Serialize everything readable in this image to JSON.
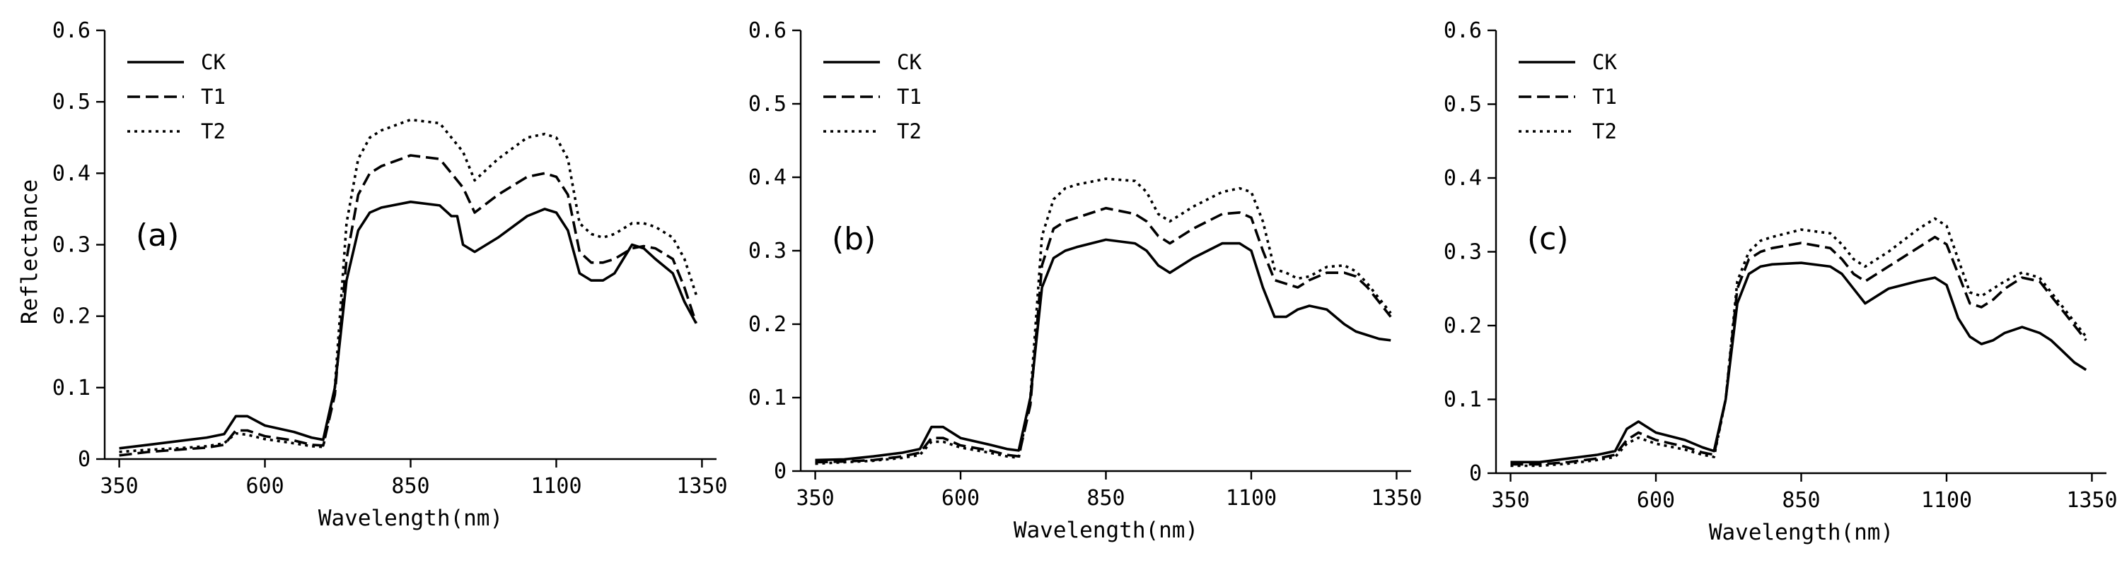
{
  "chart_data": [
    {
      "type": "line",
      "panel_label": "(a)",
      "xlabel": "Wavelength(nm)",
      "ylabel": "Reflectance",
      "xlim": [
        325,
        1375
      ],
      "ylim": [
        0,
        0.6
      ],
      "xticks": [
        350,
        600,
        850,
        1100,
        1350
      ],
      "yticks": [
        0,
        0.1,
        0.2,
        0.3,
        0.4,
        0.5,
        0.6
      ],
      "ytick_labels": [
        "0",
        "0.1",
        "0.2",
        "0.3",
        "0.4",
        "0.5",
        "0.6"
      ],
      "legend_position": "top-left",
      "series": [
        {
          "name": "CK",
          "style": "solid",
          "x": [
            350,
            400,
            450,
            500,
            530,
            550,
            570,
            600,
            650,
            680,
            700,
            720,
            740,
            760,
            780,
            800,
            850,
            900,
            920,
            930,
            940,
            960,
            1000,
            1050,
            1080,
            1100,
            1120,
            1140,
            1160,
            1180,
            1200,
            1230,
            1250,
            1270,
            1300,
            1320,
            1340
          ],
          "y": [
            0.015,
            0.02,
            0.025,
            0.03,
            0.035,
            0.06,
            0.06,
            0.047,
            0.038,
            0.03,
            0.027,
            0.1,
            0.25,
            0.32,
            0.345,
            0.352,
            0.36,
            0.355,
            0.34,
            0.34,
            0.3,
            0.29,
            0.31,
            0.34,
            0.35,
            0.345,
            0.32,
            0.26,
            0.25,
            0.25,
            0.26,
            0.3,
            0.295,
            0.28,
            0.26,
            0.22,
            0.19
          ]
        },
        {
          "name": "T1",
          "style": "dashed",
          "x": [
            350,
            400,
            450,
            500,
            530,
            550,
            570,
            600,
            650,
            680,
            700,
            720,
            740,
            760,
            780,
            800,
            850,
            900,
            920,
            940,
            960,
            1000,
            1050,
            1080,
            1100,
            1120,
            1140,
            1160,
            1180,
            1200,
            1230,
            1250,
            1270,
            1300,
            1320,
            1340
          ],
          "y": [
            0.005,
            0.01,
            0.013,
            0.016,
            0.02,
            0.04,
            0.04,
            0.032,
            0.026,
            0.02,
            0.019,
            0.09,
            0.28,
            0.37,
            0.4,
            0.41,
            0.425,
            0.42,
            0.4,
            0.38,
            0.345,
            0.37,
            0.395,
            0.4,
            0.395,
            0.37,
            0.29,
            0.275,
            0.275,
            0.28,
            0.295,
            0.298,
            0.295,
            0.28,
            0.24,
            0.19
          ]
        },
        {
          "name": "T2",
          "style": "dotted",
          "x": [
            350,
            400,
            450,
            500,
            530,
            550,
            570,
            600,
            650,
            680,
            700,
            720,
            740,
            760,
            780,
            800,
            850,
            900,
            920,
            940,
            960,
            1000,
            1050,
            1080,
            1100,
            1120,
            1140,
            1160,
            1180,
            1200,
            1230,
            1250,
            1270,
            1300,
            1320,
            1340
          ],
          "y": [
            0.01,
            0.013,
            0.015,
            0.018,
            0.022,
            0.036,
            0.034,
            0.028,
            0.022,
            0.018,
            0.017,
            0.1,
            0.33,
            0.42,
            0.45,
            0.46,
            0.475,
            0.47,
            0.45,
            0.43,
            0.39,
            0.42,
            0.45,
            0.455,
            0.45,
            0.42,
            0.33,
            0.315,
            0.31,
            0.315,
            0.33,
            0.33,
            0.325,
            0.31,
            0.28,
            0.23
          ]
        }
      ]
    },
    {
      "type": "line",
      "panel_label": "(b)",
      "xlabel": "Wavelength(nm)",
      "ylabel": "",
      "xlim": [
        325,
        1375
      ],
      "ylim": [
        0,
        0.6
      ],
      "xticks": [
        350,
        600,
        850,
        1100,
        1350
      ],
      "yticks": [
        0,
        0.1,
        0.2,
        0.3,
        0.4,
        0.5,
        0.6
      ],
      "ytick_labels": [
        "0",
        "0.1",
        "0.2",
        "0.3",
        "0.4",
        "0.5",
        "0.6"
      ],
      "legend_position": "top-left",
      "series": [
        {
          "name": "CK",
          "style": "solid",
          "x": [
            350,
            400,
            450,
            500,
            530,
            550,
            570,
            600,
            650,
            680,
            700,
            720,
            740,
            760,
            780,
            800,
            850,
            900,
            920,
            940,
            960,
            1000,
            1050,
            1080,
            1100,
            1120,
            1140,
            1160,
            1180,
            1200,
            1230,
            1260,
            1280,
            1300,
            1320,
            1340
          ],
          "y": [
            0.015,
            0.016,
            0.02,
            0.025,
            0.03,
            0.06,
            0.06,
            0.045,
            0.036,
            0.03,
            0.028,
            0.1,
            0.25,
            0.29,
            0.3,
            0.305,
            0.315,
            0.31,
            0.3,
            0.28,
            0.27,
            0.29,
            0.31,
            0.31,
            0.3,
            0.25,
            0.21,
            0.21,
            0.22,
            0.225,
            0.22,
            0.2,
            0.19,
            0.185,
            0.18,
            0.178
          ]
        },
        {
          "name": "T1",
          "style": "dashed",
          "x": [
            350,
            400,
            450,
            500,
            530,
            550,
            570,
            600,
            650,
            680,
            700,
            720,
            740,
            760,
            780,
            800,
            850,
            900,
            920,
            940,
            960,
            1000,
            1050,
            1080,
            1100,
            1120,
            1140,
            1160,
            1180,
            1200,
            1230,
            1260,
            1280,
            1300,
            1320,
            1340
          ],
          "y": [
            0.012,
            0.013,
            0.015,
            0.02,
            0.025,
            0.045,
            0.045,
            0.035,
            0.028,
            0.022,
            0.02,
            0.09,
            0.28,
            0.33,
            0.34,
            0.345,
            0.358,
            0.35,
            0.34,
            0.32,
            0.31,
            0.33,
            0.35,
            0.352,
            0.345,
            0.3,
            0.26,
            0.255,
            0.25,
            0.26,
            0.27,
            0.27,
            0.265,
            0.25,
            0.23,
            0.21
          ]
        },
        {
          "name": "T2",
          "style": "dotted",
          "x": [
            350,
            400,
            450,
            500,
            530,
            550,
            570,
            600,
            650,
            680,
            700,
            720,
            740,
            760,
            780,
            800,
            850,
            900,
            920,
            940,
            960,
            1000,
            1050,
            1080,
            1100,
            1120,
            1140,
            1160,
            1180,
            1200,
            1230,
            1260,
            1280,
            1300,
            1320,
            1340
          ],
          "y": [
            0.01,
            0.012,
            0.014,
            0.018,
            0.022,
            0.04,
            0.04,
            0.032,
            0.025,
            0.02,
            0.018,
            0.1,
            0.32,
            0.37,
            0.385,
            0.39,
            0.398,
            0.395,
            0.38,
            0.35,
            0.34,
            0.36,
            0.38,
            0.385,
            0.38,
            0.34,
            0.275,
            0.27,
            0.262,
            0.265,
            0.278,
            0.28,
            0.272,
            0.255,
            0.235,
            0.215
          ]
        }
      ]
    },
    {
      "type": "line",
      "panel_label": "(c)",
      "xlabel": "Wavelength(nm)",
      "ylabel": "",
      "xlim": [
        325,
        1375
      ],
      "ylim": [
        0,
        0.6
      ],
      "xticks": [
        350,
        600,
        850,
        1100,
        1350
      ],
      "yticks": [
        0,
        0.1,
        0.2,
        0.3,
        0.4,
        0.5,
        0.6
      ],
      "ytick_labels": [
        "0",
        "0.1",
        "0.2",
        "0.3",
        "0.4",
        "0.5",
        "0.6"
      ],
      "legend_position": "top-left",
      "series": [
        {
          "name": "CK",
          "style": "solid",
          "x": [
            350,
            400,
            450,
            500,
            530,
            550,
            570,
            600,
            650,
            680,
            700,
            720,
            740,
            760,
            780,
            800,
            850,
            900,
            920,
            940,
            960,
            1000,
            1050,
            1080,
            1100,
            1120,
            1140,
            1160,
            1180,
            1200,
            1230,
            1260,
            1280,
            1300,
            1320,
            1340
          ],
          "y": [
            0.015,
            0.015,
            0.02,
            0.025,
            0.03,
            0.06,
            0.07,
            0.055,
            0.045,
            0.035,
            0.03,
            0.1,
            0.23,
            0.27,
            0.28,
            0.283,
            0.285,
            0.28,
            0.27,
            0.25,
            0.23,
            0.25,
            0.26,
            0.265,
            0.255,
            0.21,
            0.185,
            0.175,
            0.18,
            0.19,
            0.198,
            0.19,
            0.18,
            0.165,
            0.15,
            0.14
          ]
        },
        {
          "name": "T1",
          "style": "dashed",
          "x": [
            350,
            400,
            450,
            500,
            530,
            550,
            570,
            600,
            650,
            680,
            700,
            720,
            740,
            760,
            780,
            800,
            850,
            900,
            920,
            940,
            960,
            1000,
            1050,
            1080,
            1100,
            1120,
            1140,
            1160,
            1180,
            1200,
            1230,
            1260,
            1280,
            1300,
            1320,
            1340
          ],
          "y": [
            0.012,
            0.012,
            0.015,
            0.02,
            0.025,
            0.045,
            0.055,
            0.045,
            0.036,
            0.028,
            0.025,
            0.1,
            0.25,
            0.29,
            0.3,
            0.305,
            0.312,
            0.305,
            0.29,
            0.27,
            0.26,
            0.28,
            0.305,
            0.32,
            0.31,
            0.27,
            0.23,
            0.225,
            0.235,
            0.25,
            0.265,
            0.26,
            0.24,
            0.22,
            0.2,
            0.18
          ]
        },
        {
          "name": "T2",
          "style": "dotted",
          "x": [
            350,
            400,
            450,
            500,
            530,
            550,
            570,
            600,
            650,
            680,
            700,
            720,
            740,
            760,
            780,
            800,
            850,
            900,
            920,
            940,
            960,
            1000,
            1050,
            1080,
            1100,
            1120,
            1140,
            1160,
            1180,
            1200,
            1230,
            1260,
            1280,
            1300,
            1320,
            1340
          ],
          "y": [
            0.01,
            0.01,
            0.013,
            0.018,
            0.022,
            0.04,
            0.048,
            0.04,
            0.032,
            0.025,
            0.022,
            0.1,
            0.26,
            0.3,
            0.315,
            0.32,
            0.33,
            0.325,
            0.31,
            0.29,
            0.28,
            0.3,
            0.33,
            0.345,
            0.335,
            0.29,
            0.245,
            0.24,
            0.25,
            0.26,
            0.272,
            0.265,
            0.245,
            0.225,
            0.205,
            0.185
          ]
        }
      ]
    }
  ]
}
